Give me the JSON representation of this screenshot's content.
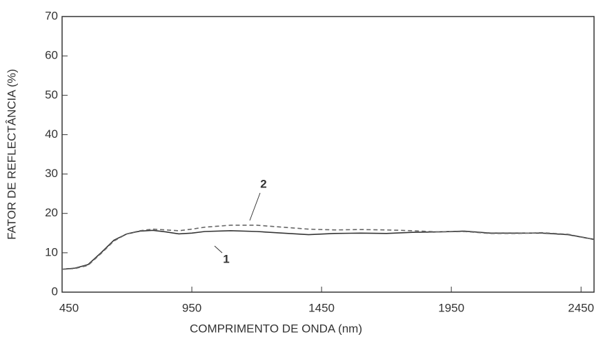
{
  "chart_data": {
    "type": "line",
    "xlabel": "COMPRIMENTO DE ONDA (nm)",
    "ylabel": "FATOR DE REFLECTÂNCIA (%)",
    "x": [
      450,
      500,
      550,
      600,
      650,
      700,
      750,
      800,
      850,
      900,
      950,
      1000,
      1100,
      1200,
      1300,
      1400,
      1500,
      1600,
      1700,
      1800,
      1900,
      2000,
      2100,
      2200,
      2300,
      2400,
      2500
    ],
    "series": [
      {
        "name": "1",
        "color": "#333333",
        "dash": false,
        "values": [
          5.8,
          6.1,
          7.0,
          10.0,
          13.2,
          14.8,
          15.5,
          15.7,
          15.3,
          14.8,
          15.0,
          15.4,
          15.6,
          15.4,
          15.0,
          14.6,
          14.9,
          15.0,
          14.9,
          15.2,
          15.3,
          15.5,
          15.0,
          15.0,
          15.0,
          14.6,
          13.4
        ]
      },
      {
        "name": "2",
        "color": "#666666",
        "dash": true,
        "values": [
          5.8,
          6.0,
          6.8,
          9.8,
          13.0,
          14.8,
          15.6,
          16.0,
          15.8,
          15.6,
          16.0,
          16.5,
          17.0,
          17.0,
          16.5,
          16.0,
          15.8,
          15.9,
          15.8,
          15.6,
          15.3,
          15.4,
          14.9,
          14.9,
          15.1,
          14.7,
          13.4
        ]
      }
    ],
    "xlim": [
      450,
      2500
    ],
    "ylim": [
      0,
      70
    ],
    "xticks": [
      450,
      950,
      1450,
      1950,
      2450
    ],
    "yticks": [
      0,
      10,
      20,
      30,
      40,
      50,
      60,
      70
    ]
  }
}
